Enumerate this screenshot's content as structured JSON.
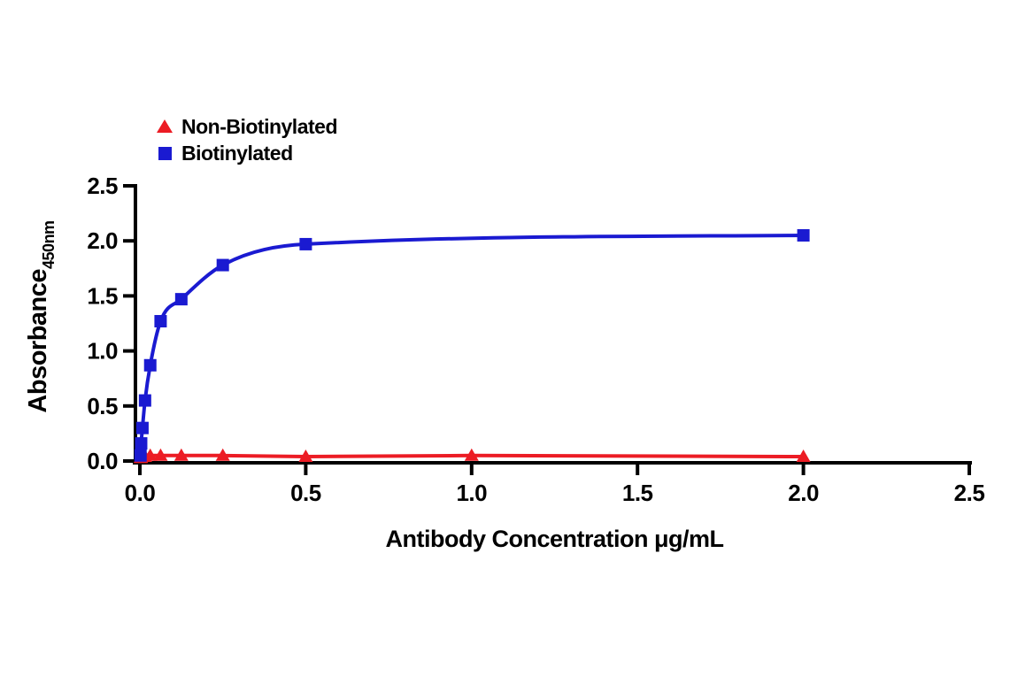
{
  "figure": {
    "background": "#ffffff"
  },
  "chart_data": {
    "type": "line",
    "title": "",
    "xlabel": "Antibody Concentration μg/mL",
    "ylabel": "Absorbance",
    "ylabel_subscript": "450nm",
    "xlim": [
      0,
      2.5
    ],
    "ylim": [
      0,
      2.5
    ],
    "x_tick_values": [
      0,
      0.5,
      1.0,
      1.5,
      2.0,
      2.5
    ],
    "x_tick_labels": [
      "0.0",
      "0.5",
      "1.0",
      "1.5",
      "2.0",
      "2.5"
    ],
    "y_tick_values": [
      0,
      0.5,
      1.0,
      1.5,
      2.0,
      2.5
    ],
    "y_tick_labels": [
      "0.0",
      "0.5",
      "1.0",
      "1.5",
      "2.0",
      "2.5"
    ],
    "grid": false,
    "legend_position": "top-left",
    "axis_color": "#000000",
    "series": [
      {
        "name": "Non-Biotinylated",
        "color": "#ec1c24",
        "marker": "triangle",
        "smooth": false,
        "points": [
          [
            0.002,
            0.03
          ],
          [
            0.004,
            0.03
          ],
          [
            0.008,
            0.04
          ],
          [
            0.0156,
            0.04
          ],
          [
            0.0313,
            0.05
          ],
          [
            0.0625,
            0.05
          ],
          [
            0.125,
            0.05
          ],
          [
            0.25,
            0.05
          ],
          [
            0.5,
            0.04
          ],
          [
            1.0,
            0.05
          ],
          [
            2.0,
            0.04
          ]
        ]
      },
      {
        "name": "Biotinylated",
        "color": "#1a1ad1",
        "marker": "square",
        "smooth": true,
        "points": [
          [
            0.002,
            0.05
          ],
          [
            0.0039,
            0.16
          ],
          [
            0.0078,
            0.3
          ],
          [
            0.0156,
            0.55
          ],
          [
            0.0313,
            0.87
          ],
          [
            0.0625,
            1.27
          ],
          [
            0.125,
            1.47
          ],
          [
            0.25,
            1.78
          ],
          [
            0.5,
            1.97
          ],
          [
            2.0,
            2.05
          ]
        ]
      }
    ]
  }
}
